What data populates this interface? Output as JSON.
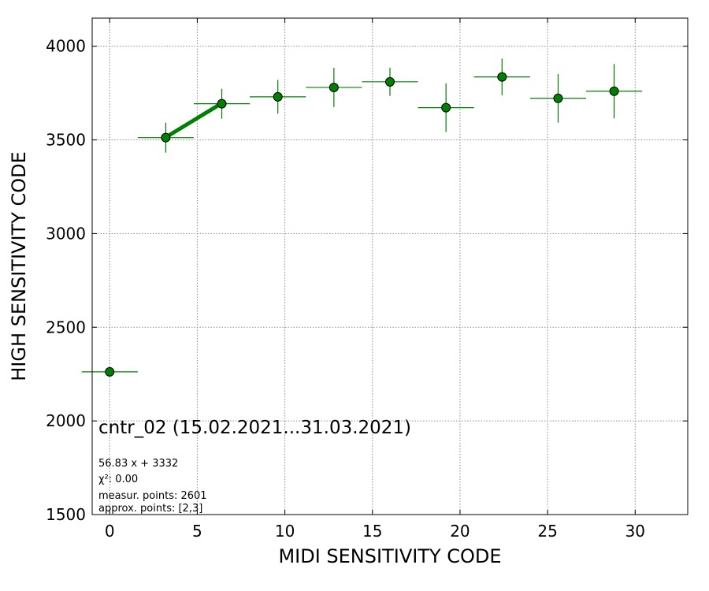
{
  "chart_data": {
    "type": "scatter",
    "xlabel": "MIDI SENSITIVITY CODE",
    "ylabel": "HIGH SENSITIVITY CODE",
    "xlim": [
      -1,
      33
    ],
    "ylim": [
      1500,
      4150
    ],
    "x_ticks": [
      0,
      5,
      10,
      15,
      20,
      25,
      30
    ],
    "y_ticks": [
      1500,
      2000,
      2500,
      3000,
      3500,
      4000
    ],
    "grid": true,
    "marker_color": "#008000",
    "errorbar_color": "#008000",
    "fit_line_color": "#008000",
    "points": [
      {
        "x": 0.0,
        "y": 2262,
        "xerr": 1.6,
        "yerr": 0
      },
      {
        "x": 3.2,
        "y": 3512,
        "xerr": 1.6,
        "yerr": 80
      },
      {
        "x": 6.4,
        "y": 3693,
        "xerr": 1.6,
        "yerr": 80
      },
      {
        "x": 9.6,
        "y": 3730,
        "xerr": 1.6,
        "yerr": 90
      },
      {
        "x": 12.8,
        "y": 3780,
        "xerr": 1.6,
        "yerr": 105
      },
      {
        "x": 16.0,
        "y": 3810,
        "xerr": 1.6,
        "yerr": 75
      },
      {
        "x": 19.2,
        "y": 3672,
        "xerr": 1.6,
        "yerr": 130
      },
      {
        "x": 22.4,
        "y": 3836,
        "xerr": 1.6,
        "yerr": 98
      },
      {
        "x": 25.6,
        "y": 3722,
        "xerr": 1.6,
        "yerr": 130
      },
      {
        "x": 28.8,
        "y": 3760,
        "xerr": 1.6,
        "yerr": 145
      }
    ],
    "fit": {
      "slope": 56.83,
      "intercept": 3332,
      "x_range": [
        3.2,
        6.4
      ]
    },
    "annotations": {
      "title": "cntr_02 (15.02.2021...31.03.2021)",
      "formula": "56.83 x + 3332",
      "chi2": "χ²: 0.00",
      "measur_points": "measur. points: 2601",
      "approx_points": "approx. points: [2,3]"
    }
  }
}
